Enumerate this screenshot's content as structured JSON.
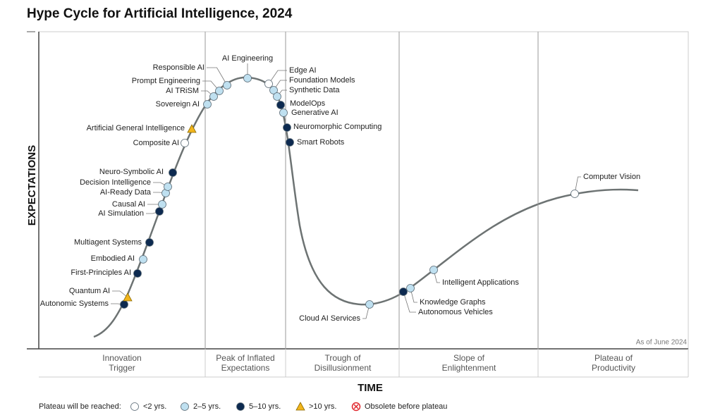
{
  "title": "Hype Cycle for Artificial Intelligence, 2024",
  "y_axis_label": "EXPECTATIONS",
  "x_axis_label": "TIME",
  "note": "As of June 2024",
  "phases": [
    [
      "Innovation",
      "Trigger"
    ],
    [
      "Peak of Inflated",
      "Expectations"
    ],
    [
      "Trough of",
      "Disillusionment"
    ],
    [
      "Slope of",
      "Enlightenment"
    ],
    [
      "Plateau of",
      "Productivity"
    ]
  ],
  "legend": {
    "title": "Plateau will be reached:",
    "items": [
      {
        "label": "<2 yrs.",
        "marker": "circle",
        "color": "#ffffff"
      },
      {
        "label": "2–5 yrs.",
        "marker": "circle",
        "color": "#bfe0f0"
      },
      {
        "label": "5–10 yrs.",
        "marker": "circle",
        "color": "#0d2a50"
      },
      {
        "label": ">10 yrs.",
        "marker": "triangle",
        "color": "#f2b51c"
      },
      {
        "label": "Obsolete before plateau",
        "marker": "cross",
        "color": "#e0282e"
      }
    ]
  },
  "nodes": [
    {
      "label": "Autonomic Systems",
      "marker": "circle",
      "color": "#0d2a50"
    },
    {
      "label": "Quantum AI",
      "marker": "triangle",
      "color": "#f2b51c"
    },
    {
      "label": "First-Principles AI",
      "marker": "circle",
      "color": "#0d2a50"
    },
    {
      "label": "Embodied AI",
      "marker": "circle",
      "color": "#bfe0f0"
    },
    {
      "label": "Multiagent Systems",
      "marker": "circle",
      "color": "#0d2a50"
    },
    {
      "label": "AI Simulation",
      "marker": "circle",
      "color": "#0d2a50"
    },
    {
      "label": "Causal AI",
      "marker": "circle",
      "color": "#bfe0f0"
    },
    {
      "label": "AI-Ready Data",
      "marker": "circle",
      "color": "#bfe0f0"
    },
    {
      "label": "Decision Intelligence",
      "marker": "circle",
      "color": "#bfe0f0"
    },
    {
      "label": "Neuro-Symbolic AI",
      "marker": "circle",
      "color": "#0d2a50"
    },
    {
      "label": "Composite AI",
      "marker": "circle",
      "color": "#ffffff"
    },
    {
      "label": "Artificial General Intelligence",
      "marker": "triangle",
      "color": "#f2b51c"
    },
    {
      "label": "Sovereign AI",
      "marker": "circle",
      "color": "#bfe0f0"
    },
    {
      "label": "AI TRiSM",
      "marker": "circle",
      "color": "#bfe0f0"
    },
    {
      "label": "Prompt Engineering",
      "marker": "circle",
      "color": "#bfe0f0"
    },
    {
      "label": "Responsible AI",
      "marker": "circle",
      "color": "#bfe0f0"
    },
    {
      "label": "AI Engineering",
      "marker": "circle",
      "color": "#bfe0f0"
    },
    {
      "label": "Edge AI",
      "marker": "circle",
      "color": "#ffffff"
    },
    {
      "label": "Foundation Models",
      "marker": "circle",
      "color": "#bfe0f0"
    },
    {
      "label": "Synthetic Data",
      "marker": "circle",
      "color": "#bfe0f0"
    },
    {
      "label": "ModelOps",
      "marker": "circle",
      "color": "#0d2a50"
    },
    {
      "label": "Generative AI",
      "marker": "circle",
      "color": "#bfe0f0"
    },
    {
      "label": "Neuromorphic Computing",
      "marker": "circle",
      "color": "#0d2a50"
    },
    {
      "label": "Smart Robots",
      "marker": "circle",
      "color": "#0d2a50"
    },
    {
      "label": "Cloud AI Services",
      "marker": "circle",
      "color": "#bfe0f0"
    },
    {
      "label": "Autonomous Vehicles",
      "marker": "circle",
      "color": "#0d2a50"
    },
    {
      "label": "Knowledge Graphs",
      "marker": "circle",
      "color": "#bfe0f0"
    },
    {
      "label": "Intelligent Applications",
      "marker": "circle",
      "color": "#bfe0f0"
    },
    {
      "label": "Computer Vision",
      "marker": "circle",
      "color": "#ffffff"
    }
  ]
}
